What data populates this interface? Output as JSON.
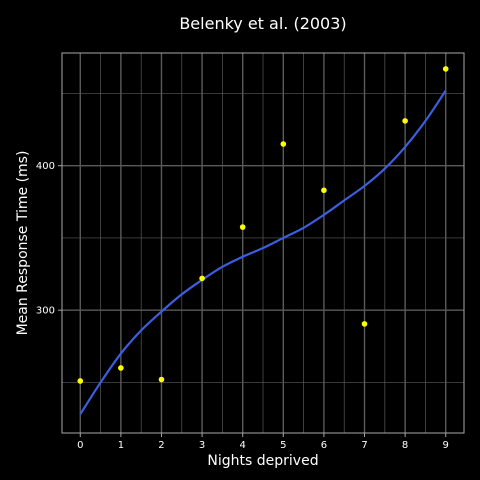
{
  "chart_data": {
    "type": "scatter",
    "title": "Belenky et al. (2003)",
    "xlabel": "Nights deprived",
    "ylabel": "Mean Response Time (ms)",
    "x_ticks": [
      "0",
      "1",
      "2",
      "3",
      "4",
      "5",
      "6",
      "7",
      "8",
      "9"
    ],
    "y_ticks": [
      "300",
      "400"
    ],
    "xlim": [
      -0.45,
      9.45
    ],
    "ylim": [
      215,
      478
    ],
    "grid": true,
    "points": [
      {
        "x": 0,
        "y": 251.0
      },
      {
        "x": 1,
        "y": 260.0
      },
      {
        "x": 2,
        "y": 252.0
      },
      {
        "x": 3,
        "y": 322.0
      },
      {
        "x": 4,
        "y": 357.5
      },
      {
        "x": 5,
        "y": 415.0
      },
      {
        "x": 6,
        "y": 383.0
      },
      {
        "x": 7,
        "y": 290.5
      },
      {
        "x": 8,
        "y": 431.0
      },
      {
        "x": 9,
        "y": 467.0
      }
    ],
    "smooth_curve": {
      "x": [
        0,
        0.5,
        1,
        1.5,
        2,
        2.5,
        3,
        3.5,
        4,
        4.5,
        5,
        5.5,
        6,
        6.5,
        7,
        7.5,
        8,
        8.5,
        9
      ],
      "y": [
        228,
        250,
        270,
        286,
        299,
        311,
        321,
        330,
        337,
        343,
        350,
        357,
        366,
        376,
        386,
        398,
        413,
        431,
        452
      ]
    },
    "colors": {
      "background": "#000000",
      "grid": "#5a5a5a",
      "points": "#ffff00",
      "curve": "#3a5fe0",
      "text": "#ffffff"
    }
  }
}
